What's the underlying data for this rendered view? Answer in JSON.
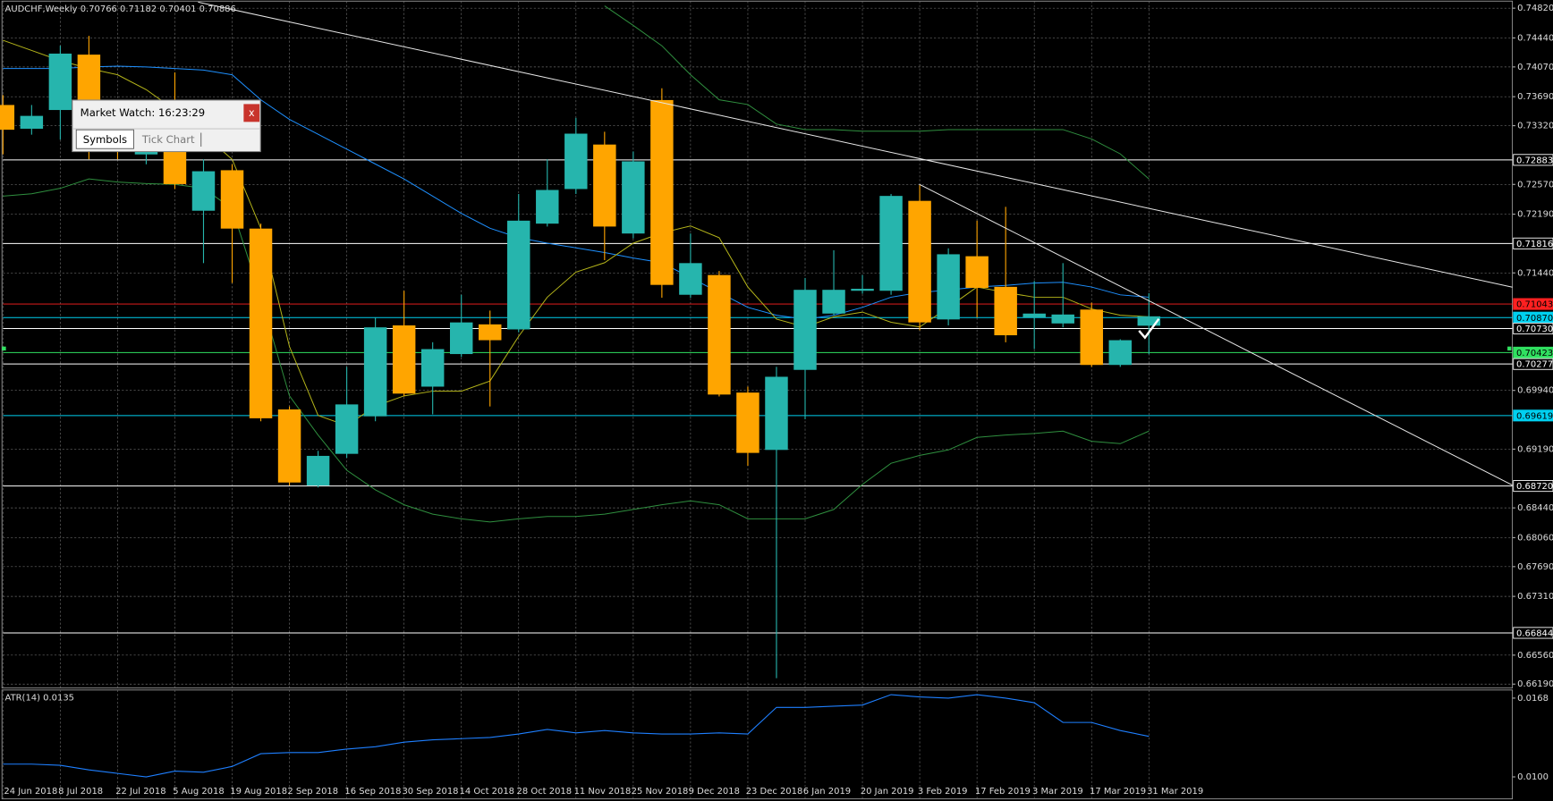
{
  "chart_data": [
    {
      "type": "candlestick",
      "title": "AUDCHF,Weekly  0.70766 0.71182 0.70401 0.70886",
      "categories": [
        "24 Jun 2018",
        null,
        "8 Jul 2018",
        null,
        "22 Jul 2018",
        null,
        "5 Aug 2018",
        null,
        "19 Aug 2018",
        null,
        "2 Sep 2018",
        null,
        "16 Sep 2018",
        null,
        "30 Sep 2018",
        null,
        "14 Oct 2018",
        null,
        "28 Oct 2018",
        null,
        "11 Nov 2018",
        null,
        "25 Nov 2018",
        null,
        "9 Dec 2018",
        null,
        "23 Dec 2018",
        null,
        "6 Jan 2019",
        null,
        "20 Jan 2019",
        null,
        "3 Feb 2019",
        null,
        "17 Feb 2019",
        null,
        "3 Mar 2019",
        null,
        "17 Mar 2019",
        null,
        "31 Mar 2019"
      ],
      "open": [
        0.73584,
        0.73281,
        0.7352,
        0.74227,
        0.73142,
        0.72953,
        0.73142,
        0.72234,
        0.72751,
        0.72006,
        0.69697,
        0.68726,
        0.6913,
        0.69609,
        0.7077,
        0.69988,
        0.70404,
        0.70783,
        0.70719,
        0.72069,
        0.72511,
        0.73079,
        0.71943,
        0.73647,
        0.71161,
        0.71413,
        0.69912,
        0.6918,
        0.70202,
        0.70921,
        0.71212,
        0.71212,
        0.7236,
        0.70846,
        0.71653,
        0.71262,
        0.70871,
        0.70795,
        0.70972,
        0.70265,
        0.70766
      ],
      "high": [
        0.7371,
        0.73584,
        0.74341,
        0.74467,
        0.73268,
        0.73268,
        0.74,
        0.7289,
        0.72827,
        0.72069,
        0.69735,
        0.69168,
        0.7024,
        0.70871,
        0.71212,
        0.70555,
        0.71161,
        0.70959,
        0.72448,
        0.7289,
        0.7342,
        0.73243,
        0.72991,
        0.73798,
        0.71943,
        0.71464,
        0.69988,
        0.7024,
        0.71376,
        0.71729,
        0.71413,
        0.72448,
        0.72562,
        0.71754,
        0.72107,
        0.72284,
        0.71338,
        0.71565,
        0.7106,
        0.70593,
        0.71182
      ],
      "low": [
        0.72953,
        0.73205,
        0.73142,
        0.7289,
        0.7289,
        0.72827,
        0.72511,
        0.71565,
        0.71312,
        0.69546,
        0.68726,
        0.68701,
        0.69079,
        0.69546,
        0.69862,
        0.69634,
        0.70366,
        0.69735,
        0.70682,
        0.72032,
        0.72448,
        0.71603,
        0.7188,
        0.71123,
        0.71123,
        0.69862,
        0.68978,
        0.66266,
        0.69571,
        0.70896,
        0.71174,
        0.71161,
        0.70707,
        0.7077,
        0.70871,
        0.70555,
        0.70467,
        0.70745,
        0.7024,
        0.7024,
        0.70401
      ],
      "close": [
        0.73268,
        0.73445,
        0.7424,
        0.73142,
        0.73016,
        0.73079,
        0.72574,
        0.72738,
        0.72006,
        0.69584,
        0.68764,
        0.69104,
        0.69761,
        0.70745,
        0.69899,
        0.70467,
        0.70808,
        0.70581,
        0.72107,
        0.72499,
        0.73218,
        0.72032,
        0.72864,
        0.71287,
        0.71565,
        0.69887,
        0.69142,
        0.70114,
        0.71224,
        0.71224,
        0.71237,
        0.72423,
        0.70808,
        0.71678,
        0.71249,
        0.70644,
        0.70921,
        0.70909,
        0.70265,
        0.70581,
        0.70886
      ],
      "up_color": "#26b5ad",
      "down_color": "#ffa500",
      "overlays": [
        {
          "color": "#2f8f3f",
          "values": [
            null,
            null,
            null,
            null,
            null,
            null,
            null,
            null,
            null,
            null,
            null,
            null,
            null,
            null,
            null,
            null,
            null,
            null,
            null,
            null,
            null,
            0.7485,
            0.746,
            0.7434,
            0.7397,
            0.7365,
            0.7359,
            0.7334,
            0.7327,
            0.7327,
            0.7325,
            0.7325,
            0.7325,
            0.7327,
            0.7327,
            0.7327,
            0.7327,
            0.7327,
            0.7315,
            0.7296,
            0.7264
          ]
        },
        {
          "color": "#2f8f3f",
          "values": [
            0.7242,
            0.7245,
            0.7252,
            0.7264,
            0.726,
            0.7258,
            0.7257,
            0.7252,
            0.7226,
            0.7113,
            0.6987,
            0.6937,
            0.6892,
            0.6867,
            0.6848,
            0.6836,
            0.683,
            0.6826,
            0.683,
            0.6833,
            0.6833,
            0.6836,
            0.6842,
            0.6848,
            0.6853,
            0.6848,
            0.683,
            0.683,
            0.683,
            0.6842,
            0.6874,
            0.6901,
            0.6911,
            0.6918,
            0.6934,
            0.6937,
            0.6939,
            0.6942,
            0.6929,
            0.6926,
            0.6942
          ]
        },
        {
          "color": "#1e90ff",
          "values": [
            0.7405,
            0.7405,
            0.7405,
            0.7407,
            0.7408,
            0.7407,
            0.7405,
            0.7403,
            0.7397,
            0.7365,
            0.734,
            0.7321,
            0.7302,
            0.7283,
            0.7264,
            0.7242,
            0.722,
            0.7201,
            0.7189,
            0.7182,
            0.7176,
            0.717,
            0.7163,
            0.7157,
            0.7138,
            0.7119,
            0.71,
            0.709,
            0.7085,
            0.709,
            0.71,
            0.7113,
            0.7119,
            0.7122,
            0.7126,
            0.7128,
            0.7131,
            0.7132,
            0.7126,
            0.7116,
            0.7113
          ]
        },
        {
          "color": "#b5b51a",
          "values": [
            0.7441,
            0.7428,
            0.7415,
            0.7405,
            0.7397,
            0.7378,
            0.7352,
            0.7321,
            0.7289,
            0.7201,
            0.705,
            0.6962,
            0.6949,
            0.6974,
            0.6987,
            0.6993,
            0.6993,
            0.7006,
            0.7063,
            0.7113,
            0.7145,
            0.7157,
            0.7182,
            0.7195,
            0.7204,
            0.7189,
            0.7126,
            0.7085,
            0.7075,
            0.7088,
            0.7094,
            0.7081,
            0.7075,
            0.71,
            0.7126,
            0.7119,
            0.7113,
            0.7113,
            0.7098,
            0.709,
            0.7088
          ]
        }
      ],
      "levels": [
        {
          "value": 0.72883,
          "label": "0.72883",
          "color": "#ffffff"
        },
        {
          "value": 0.71816,
          "label": "0.71816",
          "color": "#ffffff"
        },
        {
          "value": 0.71043,
          "label": "0.71043",
          "color": "#ff2020"
        },
        {
          "value": 0.7087,
          "label": "0.70870",
          "color": "#00d0f0"
        },
        {
          "value": 0.7073,
          "label": "0.70730",
          "color": "#ffffff"
        },
        {
          "value": 0.70423,
          "label": "0.70423",
          "color": "#30e060"
        },
        {
          "value": 0.70277,
          "label": "0.70277",
          "color": "#ffffff"
        },
        {
          "value": 0.69619,
          "label": "0.69619",
          "color": "#00d0f0"
        },
        {
          "value": 0.6872,
          "label": "0.68720",
          "color": "#ffffff"
        },
        {
          "value": 0.66844,
          "label": "0.66844",
          "color": "#ffffff"
        }
      ],
      "ylim": [
        0.6614,
        0.7491
      ],
      "yticks": [
        {
          "value": 0.7482,
          "label": "0.74820"
        },
        {
          "value": 0.7444,
          "label": "0.74440"
        },
        {
          "value": 0.7407,
          "label": "0.74070"
        },
        {
          "value": 0.7369,
          "label": "0.73690"
        },
        {
          "value": 0.7332,
          "label": "0.73320"
        },
        {
          "value": 0.7257,
          "label": "0.72570"
        },
        {
          "value": 0.7219,
          "label": "0.72190"
        },
        {
          "value": 0.7144,
          "label": "0.71440"
        },
        {
          "value": 0.6994,
          "label": "0.69940"
        },
        {
          "value": 0.6919,
          "label": "0.69190"
        },
        {
          "value": 0.6844,
          "label": "0.68440"
        },
        {
          "value": 0.6806,
          "label": "0.68060"
        },
        {
          "value": 0.6769,
          "label": "0.67690"
        },
        {
          "value": 0.6731,
          "label": "0.67310"
        },
        {
          "value": 0.6656,
          "label": "0.66560"
        },
        {
          "value": 0.6619,
          "label": "0.66190"
        }
      ],
      "grid": true
    },
    {
      "type": "line",
      "title": "ATR(14) 0.0135",
      "values": [
        0.0111,
        0.0111,
        0.011,
        0.0106,
        0.0103,
        0.01,
        0.0105,
        0.0104,
        0.0109,
        0.012,
        0.0121,
        0.0121,
        0.0124,
        0.0126,
        0.013,
        0.0132,
        0.0133,
        0.0134,
        0.0137,
        0.0141,
        0.0138,
        0.014,
        0.0138,
        0.0137,
        0.0137,
        0.0138,
        0.0137,
        0.016,
        0.016,
        0.0161,
        0.0162,
        0.0171,
        0.0169,
        0.0168,
        0.0171,
        0.0168,
        0.0164,
        0.0147,
        0.0147,
        0.014,
        0.0135
      ],
      "color": "#1e7fff",
      "ylim": [
        0.0081,
        0.0175
      ],
      "yticks": [
        0.0168,
        {
          "value": 0.01,
          "label": "0.0100"
        }
      ]
    }
  ],
  "ui": {
    "window_title": "Market Watch: 16:23:29",
    "close": "x",
    "tabs": [
      "Symbols",
      "Tick Chart"
    ]
  }
}
